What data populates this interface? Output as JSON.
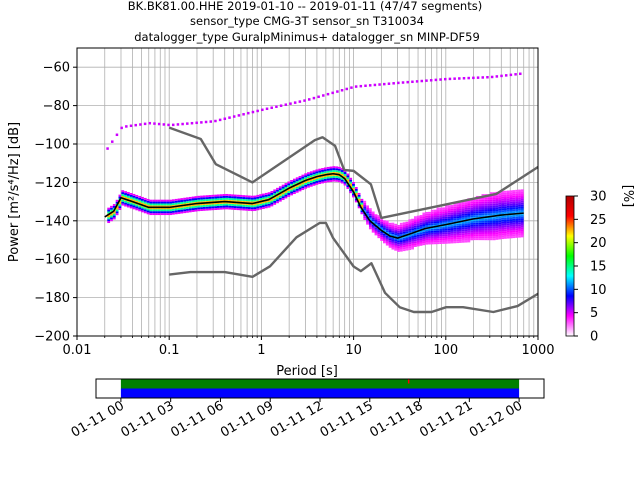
{
  "header": {
    "title_lines": [
      "BK.BK81.00.HHE   2019-01-10 -- 2019-01-11  (47/47 segments)",
      "sensor_type CMG-3T sensor_sn T310034",
      "datalogger_type GuralpMinimus+ datalogger_sn MINP-DF59"
    ]
  },
  "chart_data": [
    {
      "type": "heatmap",
      "title": "",
      "xlabel": "Period [s]",
      "ylabel": "Power [m²/s⁴/Hz] [dB]",
      "x_scale": "log",
      "xlim": [
        0.01,
        1000
      ],
      "ylim": [
        -200,
        -50
      ],
      "x_ticks": [
        0.01,
        0.1,
        1,
        10,
        100,
        1000
      ],
      "x_tick_labels": [
        "0.01",
        "0.1",
        "1",
        "10",
        "100",
        "1000"
      ],
      "y_ticks": [
        -200,
        -180,
        -160,
        -140,
        -120,
        -100,
        -80,
        -60
      ],
      "y_tick_labels": [
        "−200",
        "−180",
        "−160",
        "−140",
        "−120",
        "−100",
        "−80",
        "−60"
      ],
      "grid": true,
      "colorbar": {
        "label": "[%]",
        "range": [
          0,
          30
        ],
        "ticks": [
          0,
          5,
          10,
          15,
          20,
          25,
          30
        ],
        "tick_labels": [
          "0",
          "5",
          "10",
          "15",
          "20",
          "25",
          "30"
        ],
        "colormap": [
          "#ffffff",
          "#ff00ff",
          "#0000ff",
          "#00ffff",
          "#00ff00",
          "#ffff00",
          "#ff0000",
          "#b00000"
        ]
      },
      "series": [
        {
          "role": "high-noise-model",
          "color": "#666666",
          "x": [
            0.1,
            0.22,
            0.32,
            0.8,
            3.8,
            4.6,
            6.3,
            7.9,
            10,
            15.4,
            20,
            354,
            1000
          ],
          "y": [
            -91.5,
            -97.4,
            -110.5,
            -120,
            -98,
            -96.5,
            -101,
            -113.5,
            -114,
            -121,
            -138.5,
            -126,
            -112
          ]
        },
        {
          "role": "low-noise-model",
          "color": "#666666",
          "x": [
            0.1,
            0.17,
            0.4,
            0.8,
            1.24,
            2.4,
            4.3,
            5,
            6,
            10,
            12,
            15.6,
            21.9,
            31.6,
            45,
            70,
            101,
            154,
            328,
            600,
            1000
          ],
          "y": [
            -168,
            -166.7,
            -166.7,
            -169.2,
            -163.7,
            -148.6,
            -141.1,
            -141.1,
            -149,
            -163.8,
            -166.2,
            -162.1,
            -177.5,
            -185,
            -187.5,
            -187.5,
            -185,
            -185,
            -187.5,
            -184.4,
            -178
          ]
        },
        {
          "role": "mode",
          "color": "#000000",
          "x": [
            0.02,
            0.025,
            0.03,
            0.04,
            0.06,
            0.1,
            0.2,
            0.4,
            0.8,
            1.2,
            2,
            3,
            4,
            5,
            6,
            7,
            8,
            10,
            12,
            15,
            20,
            25,
            30,
            40,
            60,
            100,
            200,
            400,
            700
          ],
          "y": [
            -138,
            -135,
            -128,
            -130,
            -133,
            -133,
            -131,
            -130,
            -131,
            -129,
            -123,
            -119,
            -117,
            -116,
            -115.5,
            -116,
            -118,
            -125,
            -133,
            -140,
            -145,
            -148,
            -149,
            -147,
            -144,
            -142,
            -139,
            -137,
            -136
          ]
        }
      ]
    },
    {
      "type": "timeline",
      "x_tick_labels": [
        "01-11 00",
        "01-11 03",
        "01-11 06",
        "01-11 09",
        "01-11 12",
        "01-11 15",
        "01-11 18",
        "01-11 21",
        "01-12 00"
      ],
      "x_range_hours": [
        -1.5,
        25.5
      ],
      "bars": [
        {
          "role": "data-coverage",
          "color": "#008000",
          "start_hour": 0,
          "end_hour": 24
        },
        {
          "role": "psd-coverage",
          "color": "#0000ff",
          "start_hour": 0,
          "end_hour": 24
        }
      ],
      "markers": [
        {
          "role": "gap",
          "color": "#ff0000",
          "hour": 17.3
        }
      ]
    }
  ]
}
